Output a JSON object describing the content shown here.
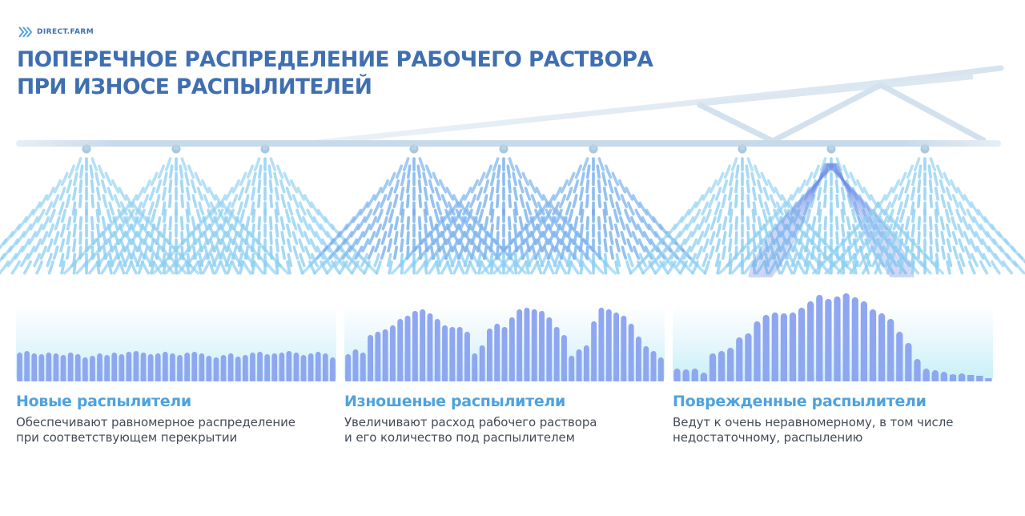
{
  "brand": {
    "name": "DIRECT.FARM"
  },
  "header": {
    "title_line1": "ПОПЕРЕЧНОЕ РАСПРЕДЕЛЕНИЕ РАБОЧЕГО РАСТВОРА",
    "title_line2": "ПРИ ИЗНОСЕ РАСПЫЛИТЕЛЕЙ"
  },
  "colors": {
    "title": "#3f6fb0",
    "accent": "#4fa2de",
    "spray": "#8fd0f2",
    "spray_worn": "#6f8fe8",
    "bars": "#8fa6f0",
    "boom": "#c9dcea"
  },
  "panels": [
    {
      "state": "new",
      "heading": "Новые распылители",
      "desc_line1": "Обеспечивают равномерное распределение",
      "desc_line2": "при соответствующем перекрытии",
      "distribution": [
        36,
        38,
        35,
        34,
        36,
        35,
        33,
        36,
        34,
        30,
        32,
        35,
        33,
        36,
        34,
        37,
        38,
        36,
        34,
        35,
        37,
        35,
        33,
        36,
        37,
        35,
        32,
        30,
        33,
        35,
        31,
        33,
        36,
        37,
        34,
        35,
        36,
        38,
        36,
        33,
        35,
        37,
        35,
        30
      ],
      "nozzles": [
        {
          "worn": false,
          "damaged": false
        },
        {
          "worn": false,
          "damaged": false
        },
        {
          "worn": false,
          "damaged": false
        }
      ]
    },
    {
      "state": "worn",
      "heading": "Изношеные распылители",
      "desc_line1": "Увеличивают расход рабочего раствора",
      "desc_line2": "и его количество под распылителем",
      "distribution": [
        34,
        40,
        36,
        58,
        62,
        65,
        70,
        78,
        82,
        88,
        90,
        85,
        78,
        70,
        68,
        68,
        62,
        35,
        45,
        66,
        72,
        68,
        80,
        90,
        92,
        90,
        88,
        80,
        68,
        58,
        32,
        40,
        45,
        75,
        92,
        90,
        86,
        82,
        72,
        56,
        44,
        38,
        30
      ],
      "nozzles": [
        {
          "worn": true,
          "damaged": false
        },
        {
          "worn": true,
          "damaged": false
        },
        {
          "worn": true,
          "damaged": false
        }
      ]
    },
    {
      "state": "damaged",
      "heading": "Поврежденные распылители",
      "desc_line1": "Ведут к очень неравномерному, в том числе",
      "desc_line2": "недостаточному, распылению",
      "distribution": [
        16,
        15,
        16,
        11,
        35,
        38,
        42,
        55,
        60,
        75,
        83,
        86,
        85,
        86,
        92,
        100,
        108,
        103,
        106,
        110,
        105,
        100,
        90,
        85,
        78,
        62,
        48,
        28,
        16,
        14,
        12,
        9,
        10,
        8,
        7,
        3
      ],
      "nozzles": [
        {
          "worn": false,
          "damaged": false
        },
        {
          "worn": false,
          "damaged": true
        },
        {
          "worn": false,
          "damaged": false
        }
      ]
    }
  ]
}
